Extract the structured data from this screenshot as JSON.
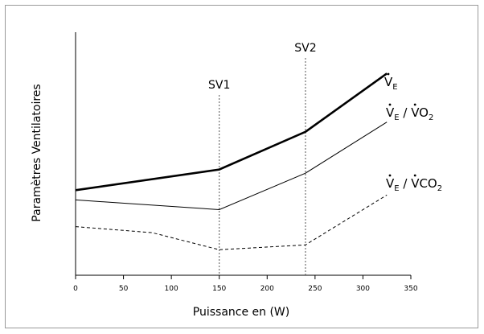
{
  "chart_data": {
    "type": "line",
    "title": "",
    "xlabel": "Puissance en (W)",
    "ylabel": "Paramètres Ventilatoires",
    "xlim": [
      0,
      350
    ],
    "ylim": [
      0,
      100
    ],
    "xticks": [
      0,
      50,
      100,
      150,
      200,
      250,
      300,
      350
    ],
    "grid": false,
    "markers": [
      {
        "label": "SV1",
        "x": 150
      },
      {
        "label": "SV2",
        "x": 240
      }
    ],
    "series": [
      {
        "name": "VE",
        "label": {
          "main": "V",
          "sub": "E",
          "tail": ""
        },
        "style": "thick",
        "x": [
          0,
          150,
          240,
          325
        ],
        "y": [
          35,
          43.5,
          59,
          83
        ]
      },
      {
        "name": "VE / VO2",
        "label": {
          "main": "V",
          "sub": "E",
          "mid": " / ",
          "main2": "VO",
          "sub2": "2"
        },
        "style": "thin",
        "x": [
          0,
          150,
          240,
          325
        ],
        "y": [
          31,
          27,
          42,
          63
        ]
      },
      {
        "name": "VE / VCO2",
        "label": {
          "main": "V",
          "sub": "E",
          "mid": " / ",
          "main2": "VCO",
          "sub2": "2"
        },
        "style": "dashed",
        "x": [
          0,
          80,
          150,
          240,
          325
        ],
        "y": [
          20,
          17.5,
          10.5,
          12.5,
          33
        ]
      }
    ]
  }
}
